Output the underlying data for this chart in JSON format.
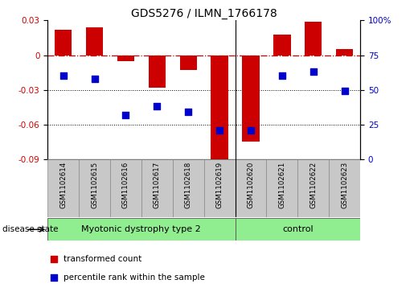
{
  "title": "GDS5276 / ILMN_1766178",
  "samples": [
    "GSM1102614",
    "GSM1102615",
    "GSM1102616",
    "GSM1102617",
    "GSM1102618",
    "GSM1102619",
    "GSM1102620",
    "GSM1102621",
    "GSM1102622",
    "GSM1102623"
  ],
  "transformed_count": [
    0.022,
    0.024,
    -0.005,
    -0.028,
    -0.013,
    -0.093,
    -0.075,
    0.018,
    0.029,
    0.005
  ],
  "percentile_rank": [
    60,
    58,
    32,
    38,
    34,
    21,
    21,
    60,
    63,
    49
  ],
  "group0_label": "Myotonic dystrophy type 2",
  "group0_count": 6,
  "group1_label": "control",
  "group1_count": 4,
  "group_separator": 5.5,
  "group_color": "#90EE90",
  "ylim_left": [
    -0.09,
    0.03
  ],
  "ylim_right": [
    0,
    100
  ],
  "yticks_left": [
    -0.09,
    -0.06,
    -0.03,
    0.0,
    0.03
  ],
  "yticks_right": [
    0,
    25,
    50,
    75,
    100
  ],
  "bar_color": "#CC0000",
  "square_color": "#0000CC",
  "hline_y": 0.0,
  "dotted_lines": [
    -0.03,
    -0.06
  ],
  "bar_width": 0.55,
  "square_size": 28,
  "label_area_color": "#C8C8C8",
  "disease_state_label": "disease state",
  "legend_bar_label": "transformed count",
  "legend_sq_label": "percentile rank within the sample",
  "title_fontsize": 10,
  "tick_fontsize": 7.5,
  "sample_fontsize": 6.2
}
